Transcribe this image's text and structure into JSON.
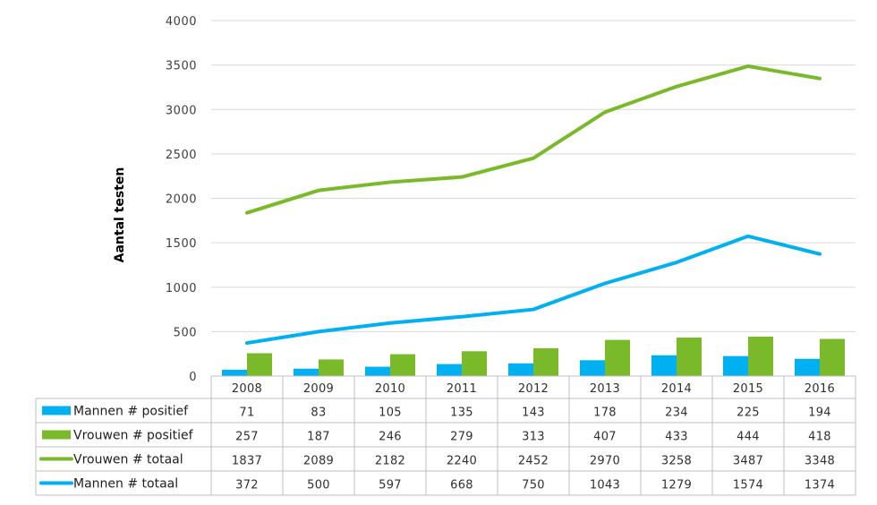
{
  "chart_data": {
    "type": "bar",
    "ylabel": "Aantal testen",
    "ylim": [
      0,
      4000
    ],
    "yticks": [
      0,
      500,
      1000,
      1500,
      2000,
      2500,
      3000,
      3500,
      4000
    ],
    "grid": true,
    "legend": "data-table",
    "categories": [
      "2008",
      "2009",
      "2010",
      "2011",
      "2012",
      "2013",
      "2014",
      "2015",
      "2016"
    ],
    "series": [
      {
        "name": "Mannen # positief",
        "type": "bar",
        "color": "#00b0f0",
        "values": [
          71,
          83,
          105,
          135,
          143,
          178,
          234,
          225,
          194
        ]
      },
      {
        "name": "Vrouwen # positief",
        "type": "bar",
        "color": "#7ab929",
        "values": [
          257,
          187,
          246,
          279,
          313,
          407,
          433,
          444,
          418
        ]
      },
      {
        "name": "Vrouwen # totaal",
        "type": "line",
        "color": "#7ab929",
        "values": [
          1837,
          2089,
          2182,
          2240,
          2452,
          2970,
          3258,
          3487,
          3348
        ]
      },
      {
        "name": "Mannen # totaal",
        "type": "line",
        "color": "#00b0f0",
        "values": [
          372,
          500,
          597,
          668,
          750,
          1043,
          1279,
          1574,
          1374
        ]
      }
    ]
  }
}
